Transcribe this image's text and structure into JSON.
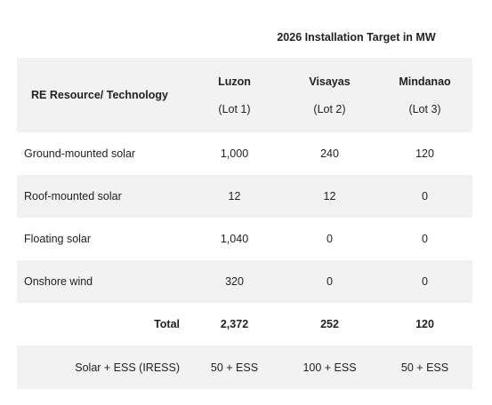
{
  "table": {
    "group_title": "2026 Installation Target in MW",
    "resource_header": "RE Resource/ Technology",
    "regions": [
      {
        "name": "Luzon",
        "lot": "(Lot 1)"
      },
      {
        "name": "Visayas",
        "lot": "(Lot 2)"
      },
      {
        "name": "Mindanao",
        "lot": "(Lot 3)"
      }
    ],
    "rows": [
      {
        "name": "Ground-mounted solar",
        "values": [
          "1,000",
          "240",
          "120"
        ]
      },
      {
        "name": "Roof-mounted solar",
        "values": [
          "12",
          "12",
          "0"
        ]
      },
      {
        "name": "Floating solar",
        "values": [
          "1,040",
          "0",
          "0"
        ]
      },
      {
        "name": "Onshore wind",
        "values": [
          "320",
          "0",
          "0"
        ]
      }
    ],
    "total": {
      "label": "Total",
      "values": [
        "2,372",
        "252",
        "120"
      ]
    },
    "iress": {
      "label": "Solar + ESS (IRESS)",
      "values": [
        "50 + ESS",
        "100 + ESS",
        "50 + ESS"
      ]
    }
  }
}
